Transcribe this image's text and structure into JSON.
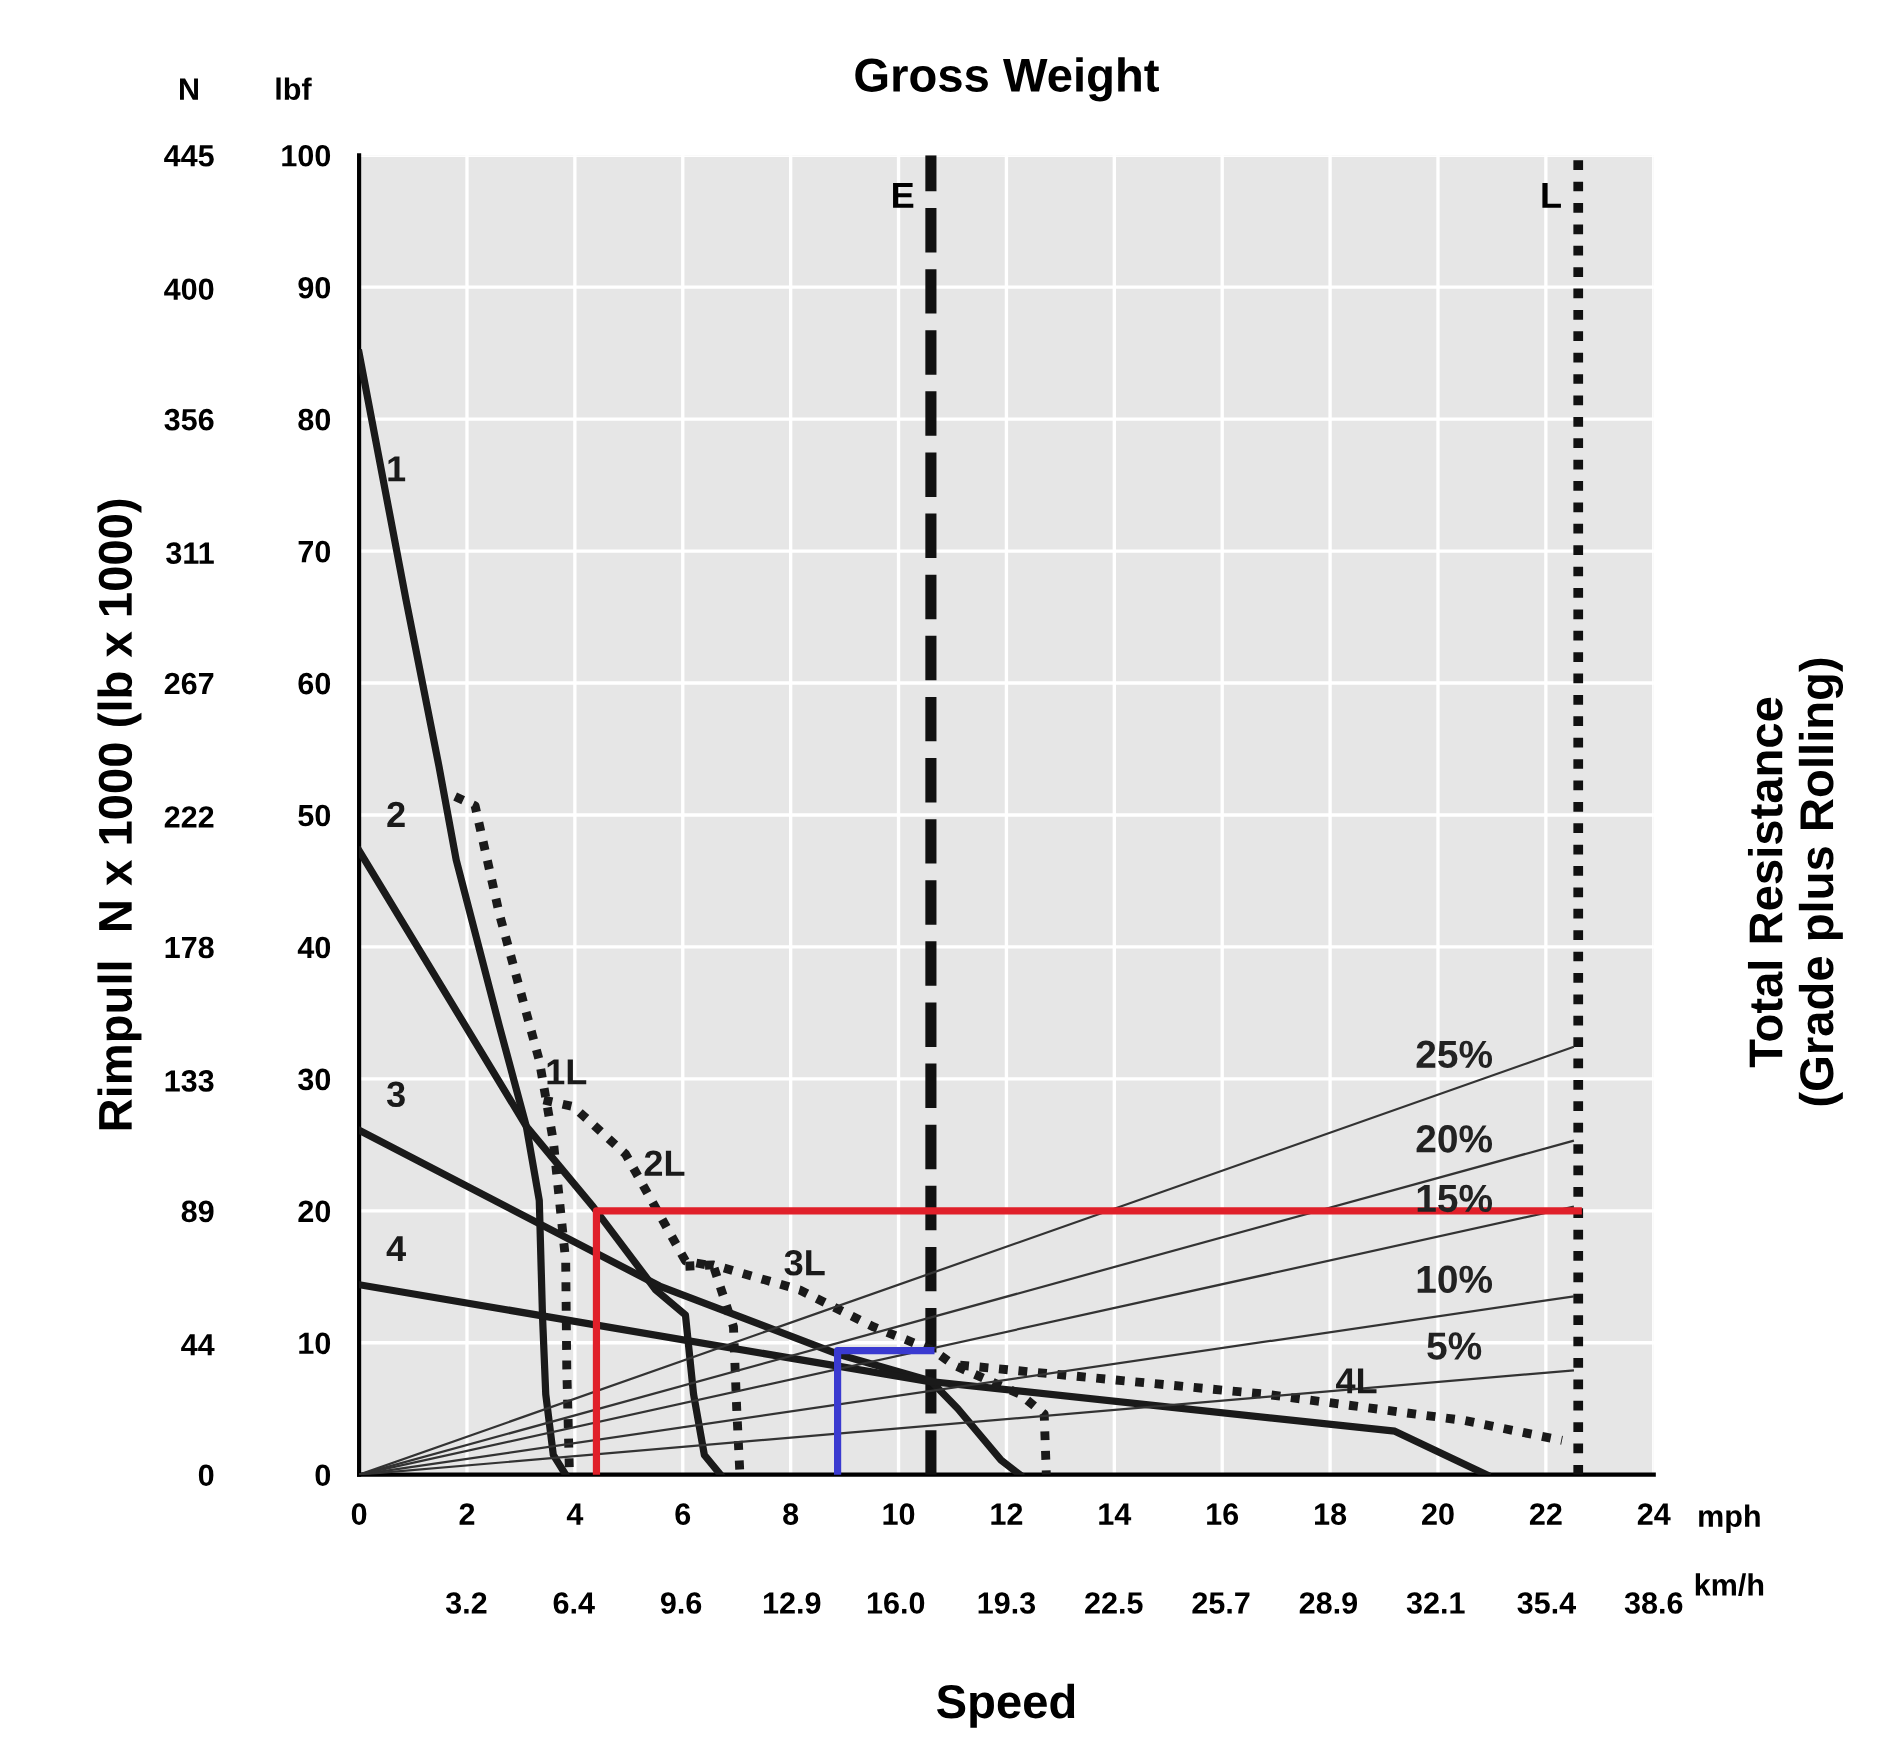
{
  "chart_data": {
    "type": "line",
    "title": "Gross Weight",
    "xlabel": "Speed",
    "y2label": "Rimpull  N x 1000 (lb x 1000)",
    "annotations": [
      "N",
      "lbf",
      "mph",
      "km/h",
      "Total Resistance\n(Grade plus Rolling)"
    ],
    "xlim": [
      0,
      24
    ],
    "xticks": [
      0,
      2,
      4,
      6,
      8,
      10,
      12,
      14,
      16,
      18,
      20,
      22,
      24
    ],
    "x2lim": [
      0,
      38.6
    ],
    "x2ticks": [
      3.2,
      6.4,
      9.6,
      12.9,
      {
        "value": 16.0,
        "label": "16.0"
      },
      19.3,
      22.5,
      25.7,
      28.9,
      32.1,
      35.4,
      38.6
    ],
    "ylim": [
      0,
      100
    ],
    "yticks": [
      0,
      10,
      20,
      30,
      40,
      50,
      60,
      70,
      80,
      90,
      100
    ],
    "y2lim": [
      0,
      445
    ],
    "y2ticks": [
      0,
      44,
      89,
      133,
      178,
      222,
      267,
      311,
      356,
      400,
      445
    ],
    "grid": true,
    "marker": "none",
    "ref_lines": [
      {
        "axis": "x",
        "value": 10.6,
        "label": "E",
        "color": "#111111",
        "line_style": "dashed"
      },
      {
        "axis": "x",
        "value": 22.6,
        "label": "L",
        "color": "#111111",
        "line_style": "dotted"
      }
    ],
    "series": [
      {
        "name": "1",
        "color": "#1a1a1a",
        "line_style": "solid",
        "x": [
          0,
          0.87,
          1.48,
          1.8,
          2.6,
          3.1,
          3.34,
          3.4,
          3.46,
          3.6,
          3.83
        ],
        "values": [
          85,
          66.3,
          53.7,
          46.6,
          34,
          26.4,
          20.8,
          12,
          6.1,
          1.5,
          0
        ]
      },
      {
        "name": "2",
        "color": "#1a1a1a",
        "line_style": "solid",
        "x": [
          0,
          3.1,
          4.34,
          5.5,
          6.05,
          6.2,
          6.4,
          6.7
        ],
        "values": [
          47.3,
          26.4,
          20.3,
          14,
          12.1,
          6.1,
          1.5,
          0
        ]
      },
      {
        "name": "3",
        "color": "#1a1a1a",
        "line_style": "solid",
        "x": [
          0,
          5.57,
          8.9,
          10.6,
          11.1,
          11.9,
          12.25
        ],
        "values": [
          26.1,
          14.3,
          9.1,
          7.1,
          5,
          1.1,
          0
        ]
      },
      {
        "name": "4",
        "color": "#1a1a1a",
        "line_style": "solid",
        "x": [
          0,
          10.5,
          19.2,
          20.9
        ],
        "values": [
          14.4,
          7.1,
          3.3,
          0
        ]
      },
      {
        "name": "1L",
        "color": "#1a1a1a",
        "line_style": "dotted",
        "x": [
          1.78,
          2.15,
          2.6,
          3.34,
          3.6,
          3.83,
          3.85,
          3.9
        ],
        "values": [
          51.4,
          50.7,
          42.5,
          31.4,
          25.3,
          16.2,
          8,
          0
        ]
      },
      {
        "name": "2L",
        "color": "#1a1a1a",
        "line_style": "dotted",
        "x": [
          3.42,
          3.97,
          4.94,
          6.05,
          6.57,
          6.94,
          7.0,
          7.06
        ],
        "values": [
          28.4,
          27.9,
          24.3,
          16.2,
          15.8,
          11.2,
          5,
          0
        ]
      },
      {
        "name": "3L",
        "color": "#1a1a1a",
        "line_style": "dotted",
        "x": [
          6.05,
          6.57,
          8.17,
          9.54,
          10.65,
          11.03,
          12.25,
          12.7,
          12.74
        ],
        "values": [
          15.8,
          15.9,
          14.0,
          11.2,
          9.4,
          8.3,
          6.1,
          4.6,
          0
        ]
      },
      {
        "name": "4L",
        "color": "#1a1a1a",
        "line_style": "dotted",
        "x": [
          11.14,
          16.8,
          20.5,
          22.3
        ],
        "values": [
          8.3,
          6.1,
          4.1,
          2.6
        ]
      },
      {
        "name": "25%",
        "color": "#333333",
        "line_style": "solid",
        "x": [
          0,
          22.5
        ],
        "values": [
          0,
          32.4
        ]
      },
      {
        "name": "20%",
        "color": "#333333",
        "line_style": "solid",
        "x": [
          0,
          22.5
        ],
        "values": [
          0,
          25.3
        ]
      },
      {
        "name": "15%",
        "color": "#333333",
        "line_style": "solid",
        "x": [
          0,
          22.5
        ],
        "values": [
          0,
          20.3
        ]
      },
      {
        "name": "10%",
        "color": "#333333",
        "line_style": "solid",
        "x": [
          0,
          22.5
        ],
        "values": [
          0,
          13.5
        ]
      },
      {
        "name": "5%",
        "color": "#333333",
        "line_style": "solid",
        "x": [
          0,
          22.5
        ],
        "values": [
          0,
          7.9
        ]
      },
      {
        "color": "#e0202a",
        "line_style": "solid",
        "x": [
          4.4,
          4.4,
          22.6
        ],
        "values": [
          0,
          20,
          20
        ]
      },
      {
        "color": "#3a3ad0",
        "line_style": "solid",
        "x": [
          8.87,
          8.87,
          10.6
        ],
        "values": [
          0,
          9.4,
          9.4
        ]
      }
    ]
  }
}
